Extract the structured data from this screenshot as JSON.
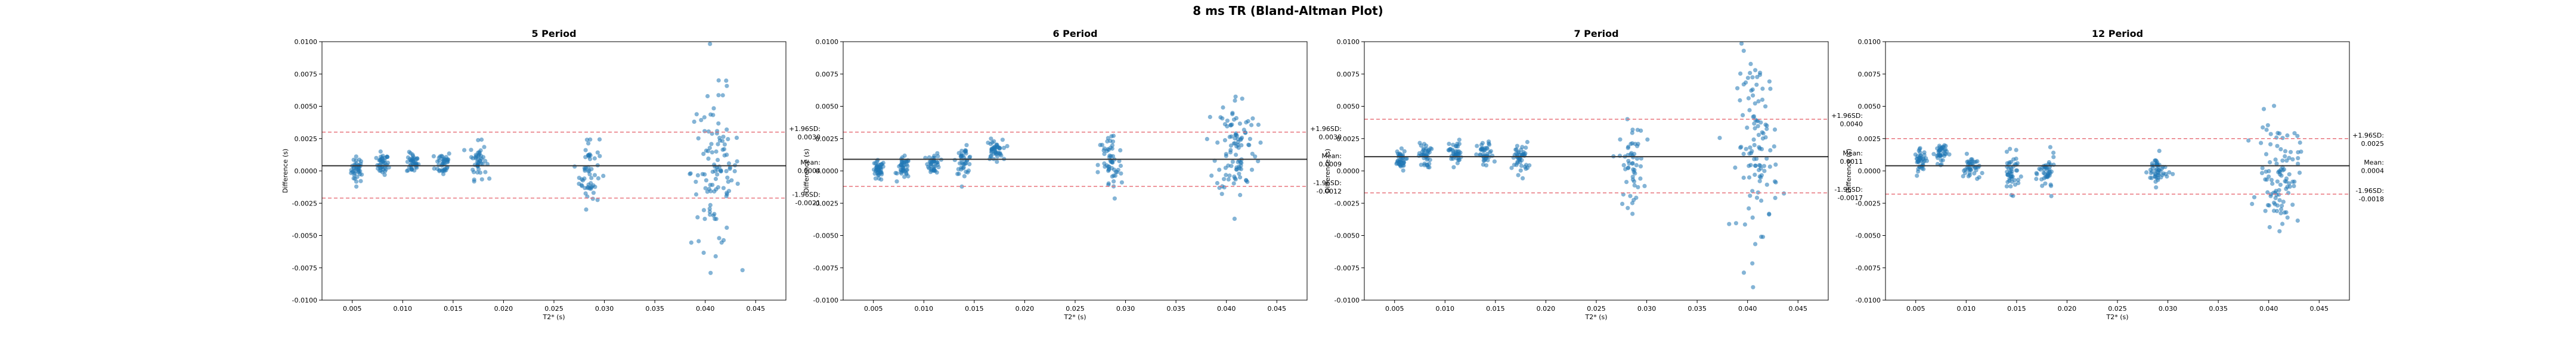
{
  "figure": {
    "suptitle": "8 ms TR (Bland-Altman Plot)"
  },
  "chart_data": [
    {
      "type": "scatter",
      "title": "5 Period",
      "xlabel": "T2* (s)",
      "ylabel": "Difference (s)",
      "xlim": [
        0.002,
        0.048
      ],
      "ylim": [
        -0.01,
        0.01
      ],
      "xticks": [
        "0.005",
        "0.010",
        "0.015",
        "0.020",
        "0.025",
        "0.030",
        "0.035",
        "0.040",
        "0.045"
      ],
      "yticks": [
        "-0.0100",
        "-0.0075",
        "-0.0050",
        "-0.0025",
        "0.0000",
        "0.0025",
        "0.0050",
        "0.0075",
        "0.0100"
      ],
      "mean": 0.0004,
      "upper_loa": 0.003,
      "lower_loa": -0.0021,
      "labels": {
        "upper": "+1.96SD:",
        "upper_value": "0.0030",
        "mean": "Mean:",
        "mean_value": "0.0004",
        "lower": "-1.96SD:",
        "lower_value": "-0.0021"
      },
      "point_color": "#1f77b4",
      "clusters": [
        {
          "x": 0.0055,
          "xs": 0.0003,
          "y": 0.0001,
          "ys": 0.0005,
          "n": 40
        },
        {
          "x": 0.008,
          "xs": 0.0003,
          "y": 0.0005,
          "ys": 0.0004,
          "n": 40
        },
        {
          "x": 0.011,
          "xs": 0.0003,
          "y": 0.0006,
          "ys": 0.0004,
          "n": 40
        },
        {
          "x": 0.014,
          "xs": 0.0004,
          "y": 0.0006,
          "ys": 0.0005,
          "n": 40
        },
        {
          "x": 0.0175,
          "xs": 0.0004,
          "y": 0.0008,
          "ys": 0.0007,
          "n": 45
        },
        {
          "x": 0.0285,
          "xs": 0.0005,
          "y": 0.0,
          "ys": 0.0014,
          "n": 55
        },
        {
          "x": 0.041,
          "xs": 0.0012,
          "y": 0.0,
          "ys": 0.003,
          "n": 110
        }
      ]
    },
    {
      "type": "scatter",
      "title": "6 Period",
      "xlabel": "T2* (s)",
      "ylabel": "Difference (s)",
      "xlim": [
        0.002,
        0.048
      ],
      "ylim": [
        -0.01,
        0.01
      ],
      "xticks": [
        "0.005",
        "0.010",
        "0.015",
        "0.020",
        "0.025",
        "0.030",
        "0.035",
        "0.040",
        "0.045"
      ],
      "yticks": [
        "-0.0100",
        "-0.0075",
        "-0.0050",
        "-0.0025",
        "0.0000",
        "0.0025",
        "0.0050",
        "0.0075",
        "0.0100"
      ],
      "mean": 0.0009,
      "upper_loa": 0.003,
      "lower_loa": -0.0012,
      "labels": {
        "upper": "+1.96SD:",
        "upper_value": "0.0030",
        "mean": "Mean:",
        "mean_value": "0.0009",
        "lower": "-1.96SD:",
        "lower_value": "-0.0012"
      },
      "point_color": "#1f77b4",
      "clusters": [
        {
          "x": 0.0055,
          "xs": 0.0003,
          "y": 0.0,
          "ys": 0.0004,
          "n": 40
        },
        {
          "x": 0.008,
          "xs": 0.0003,
          "y": 0.0002,
          "ys": 0.0004,
          "n": 40
        },
        {
          "x": 0.011,
          "xs": 0.0003,
          "y": 0.0006,
          "ys": 0.0004,
          "n": 40
        },
        {
          "x": 0.014,
          "xs": 0.0004,
          "y": 0.0008,
          "ys": 0.0005,
          "n": 40
        },
        {
          "x": 0.017,
          "xs": 0.0004,
          "y": 0.0016,
          "ys": 0.0004,
          "n": 45
        },
        {
          "x": 0.0285,
          "xs": 0.0006,
          "y": 0.0004,
          "ys": 0.0014,
          "n": 55
        },
        {
          "x": 0.041,
          "xs": 0.001,
          "y": 0.002,
          "ys": 0.002,
          "n": 100
        }
      ]
    },
    {
      "type": "scatter",
      "title": "7 Period",
      "xlabel": "T2* (s)",
      "ylabel": "Difference (s)",
      "xlim": [
        0.002,
        0.048
      ],
      "ylim": [
        -0.01,
        0.01
      ],
      "xticks": [
        "0.005",
        "0.010",
        "0.015",
        "0.020",
        "0.025",
        "0.030",
        "0.035",
        "0.040",
        "0.045"
      ],
      "yticks": [
        "-0.0100",
        "-0.0075",
        "-0.0050",
        "-0.0025",
        "0.0000",
        "0.0025",
        "0.0050",
        "0.0075",
        "0.0100"
      ],
      "mean": 0.0011,
      "upper_loa": 0.004,
      "lower_loa": -0.0017,
      "labels": {
        "upper": "+1.96SD:",
        "upper_value": "0.0040",
        "mean": "Mean:",
        "mean_value": "0.0011",
        "lower": "-1.96SD:",
        "lower_value": "-0.0017"
      },
      "point_color": "#1f77b4",
      "clusters": [
        {
          "x": 0.0055,
          "xs": 0.0003,
          "y": 0.0008,
          "ys": 0.0004,
          "n": 40
        },
        {
          "x": 0.008,
          "xs": 0.0003,
          "y": 0.0012,
          "ys": 0.0005,
          "n": 40
        },
        {
          "x": 0.011,
          "xs": 0.0003,
          "y": 0.0014,
          "ys": 0.0005,
          "n": 40
        },
        {
          "x": 0.014,
          "xs": 0.0004,
          "y": 0.0012,
          "ys": 0.0005,
          "n": 40
        },
        {
          "x": 0.0175,
          "xs": 0.0004,
          "y": 0.001,
          "ys": 0.0006,
          "n": 45
        },
        {
          "x": 0.0285,
          "xs": 0.0006,
          "y": 0.0005,
          "ys": 0.0016,
          "n": 55
        },
        {
          "x": 0.041,
          "xs": 0.001,
          "y": 0.002,
          "ys": 0.0035,
          "n": 110
        }
      ]
    },
    {
      "type": "scatter",
      "title": "12 Period",
      "xlabel": "T2* (s)",
      "ylabel": "Difference (s)",
      "xlim": [
        0.002,
        0.048
      ],
      "ylim": [
        -0.01,
        0.01
      ],
      "xticks": [
        "0.005",
        "0.010",
        "0.015",
        "0.020",
        "0.025",
        "0.030",
        "0.035",
        "0.040",
        "0.045"
      ],
      "yticks": [
        "-0.0100",
        "-0.0075",
        "-0.0050",
        "-0.0025",
        "0.0000",
        "0.0025",
        "0.0050",
        "0.0075",
        "0.0100"
      ],
      "mean": 0.0004,
      "upper_loa": 0.0025,
      "lower_loa": -0.0018,
      "labels": {
        "upper": "+1.96SD:",
        "upper_value": "0.0025",
        "mean": "Mean:",
        "mean_value": "0.0004",
        "lower": "-1.96SD:",
        "lower_value": "-0.0018"
      },
      "point_color": "#1f77b4",
      "clusters": [
        {
          "x": 0.0055,
          "xs": 0.0003,
          "y": 0.0008,
          "ys": 0.0004,
          "n": 40
        },
        {
          "x": 0.0075,
          "xs": 0.0003,
          "y": 0.0014,
          "ys": 0.0004,
          "n": 40
        },
        {
          "x": 0.0105,
          "xs": 0.0004,
          "y": 0.0002,
          "ys": 0.0005,
          "n": 40
        },
        {
          "x": 0.0145,
          "xs": 0.0004,
          "y": -0.0002,
          "ys": 0.0007,
          "n": 45
        },
        {
          "x": 0.018,
          "xs": 0.0004,
          "y": -0.0002,
          "ys": 0.0007,
          "n": 45
        },
        {
          "x": 0.029,
          "xs": 0.0005,
          "y": 0.0,
          "ys": 0.0006,
          "n": 50
        },
        {
          "x": 0.041,
          "xs": 0.001,
          "y": -0.0002,
          "ys": 0.002,
          "n": 100
        }
      ]
    }
  ]
}
